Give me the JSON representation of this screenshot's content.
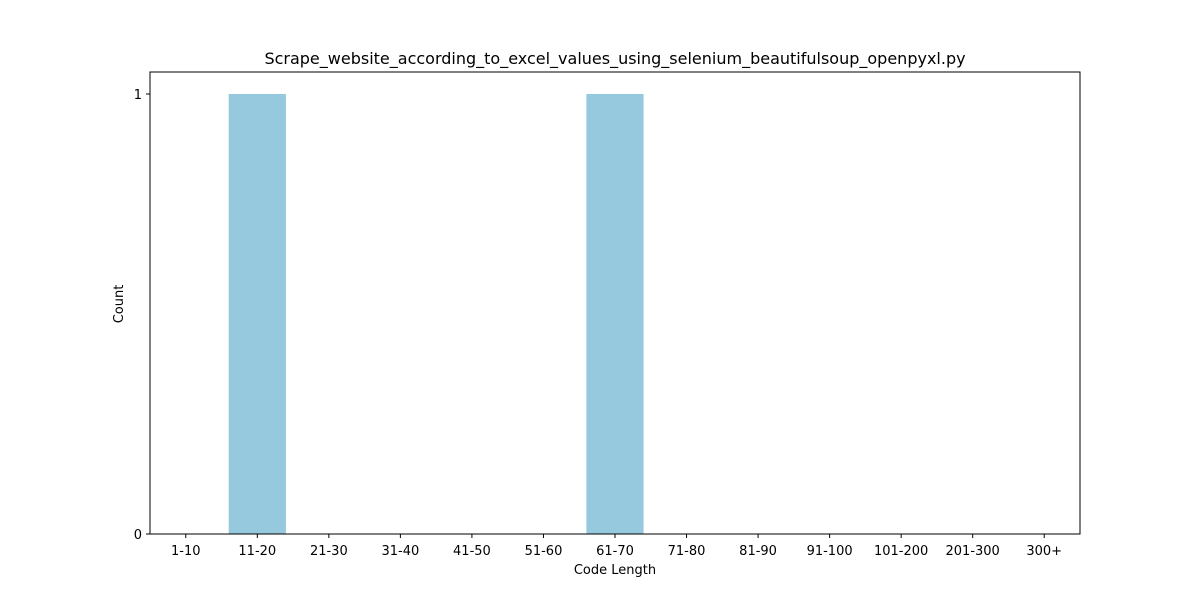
{
  "colors": {
    "bar": "#96c9dd",
    "axis": "#000000",
    "background": "#ffffff"
  },
  "chart_data": {
    "type": "bar",
    "title": "Scrape_website_according_to_excel_values_using_selenium_beautifulsoup_openpyxl.py",
    "xlabel": "Code Length",
    "ylabel": "Count",
    "categories": [
      "1-10",
      "11-20",
      "21-30",
      "31-40",
      "41-50",
      "51-60",
      "61-70",
      "71-80",
      "81-90",
      "91-100",
      "101-200",
      "201-300",
      "300+"
    ],
    "values": [
      0,
      1,
      0,
      0,
      0,
      0,
      1,
      0,
      0,
      0,
      0,
      0,
      0
    ],
    "ylim": [
      0,
      1.05
    ],
    "yticks": [
      0,
      1
    ],
    "grid": false,
    "legend": false
  }
}
